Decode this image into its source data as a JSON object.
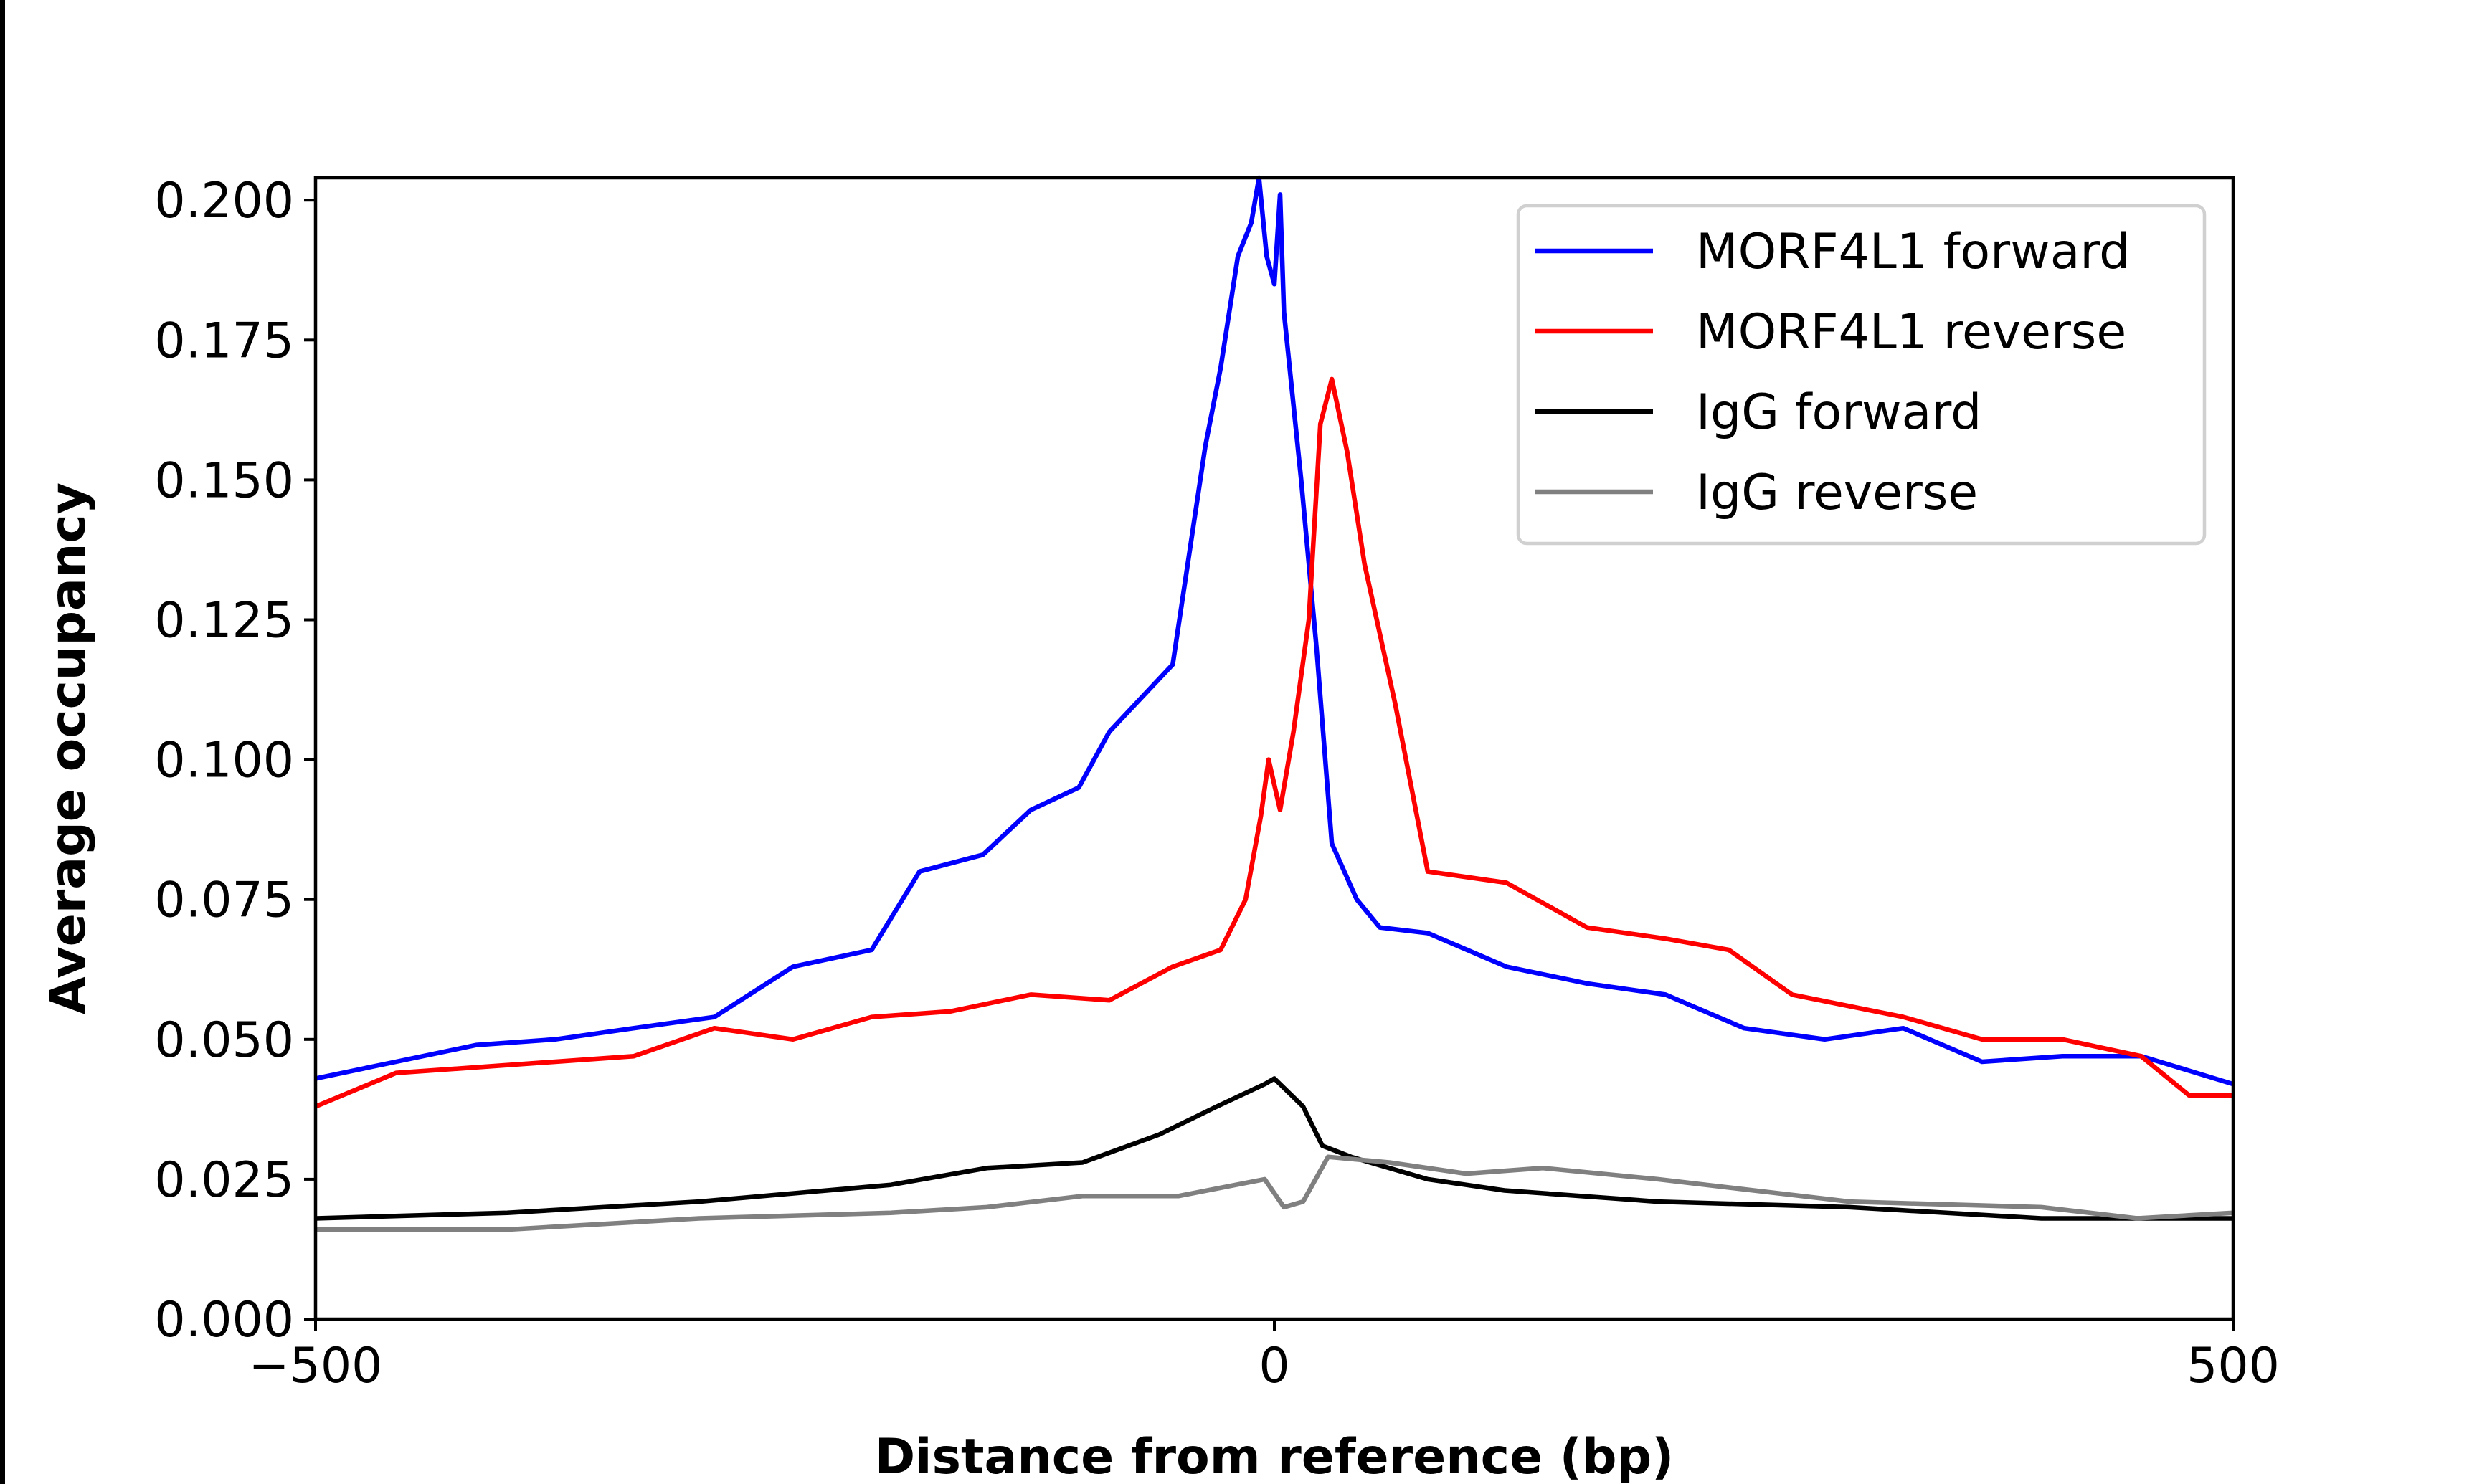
{
  "chart_data": {
    "type": "line",
    "title": "",
    "xlabel": "Distance from reference (bp)",
    "ylabel": "Average occupancy",
    "xlim": [
      -500,
      500
    ],
    "ylim": [
      0,
      0.204
    ],
    "x_ticks": [
      -500,
      0,
      500
    ],
    "x_tick_labels": [
      "−500",
      "0",
      "500"
    ],
    "y_ticks": [
      0,
      0.025,
      0.05,
      0.075,
      0.1,
      0.125,
      0.15,
      0.175,
      0.2
    ],
    "y_tick_labels": [
      "0.000",
      "0.025",
      "0.050",
      "0.075",
      "0.100",
      "0.125",
      "0.150",
      "0.175",
      "0.200"
    ],
    "grid": false,
    "legend_position": "top-right",
    "series": [
      {
        "name": "MORF4L1 forward",
        "color": "#0000ff",
        "x": [
          -500,
          -458,
          -416,
          -375,
          -334,
          -292,
          -251,
          -210,
          -185,
          -152,
          -127,
          -102,
          -86,
          -53,
          -36,
          -28,
          -19,
          -12,
          -8,
          -4,
          0,
          3,
          5,
          14,
          22,
          30,
          43,
          55,
          80,
          121,
          163,
          204,
          245,
          287,
          328,
          369,
          411,
          452,
          500
        ],
        "y": [
          0.043,
          0.046,
          0.049,
          0.05,
          0.052,
          0.054,
          0.063,
          0.066,
          0.08,
          0.083,
          0.091,
          0.095,
          0.105,
          0.117,
          0.156,
          0.17,
          0.19,
          0.196,
          0.204,
          0.19,
          0.185,
          0.201,
          0.18,
          0.15,
          0.12,
          0.085,
          0.075,
          0.07,
          0.069,
          0.063,
          0.06,
          0.058,
          0.052,
          0.05,
          0.052,
          0.046,
          0.047,
          0.047,
          0.042
        ]
      },
      {
        "name": "MORF4L1 reverse",
        "color": "#ff0000",
        "x": [
          -500,
          -458,
          -416,
          -375,
          -334,
          -292,
          -251,
          -210,
          -169,
          -127,
          -86,
          -53,
          -28,
          -15,
          -7,
          -3,
          3,
          10,
          18,
          24,
          30,
          38,
          47,
          63,
          80,
          121,
          163,
          204,
          237,
          270,
          328,
          369,
          411,
          452,
          477,
          500
        ],
        "y": [
          0.038,
          0.044,
          0.045,
          0.046,
          0.047,
          0.052,
          0.05,
          0.054,
          0.055,
          0.058,
          0.057,
          0.063,
          0.066,
          0.075,
          0.09,
          0.1,
          0.091,
          0.105,
          0.125,
          0.16,
          0.168,
          0.155,
          0.135,
          0.11,
          0.08,
          0.078,
          0.07,
          0.068,
          0.066,
          0.058,
          0.054,
          0.05,
          0.05,
          0.047,
          0.04,
          0.04
        ]
      },
      {
        "name": "IgG forward",
        "color": "#000000",
        "x": [
          -500,
          -400,
          -300,
          -200,
          -150,
          -100,
          -60,
          -30,
          -5,
          0,
          15,
          25,
          40,
          80,
          120,
          200,
          300,
          400,
          500
        ],
        "y": [
          0.018,
          0.019,
          0.021,
          0.024,
          0.027,
          0.028,
          0.033,
          0.038,
          0.042,
          0.043,
          0.038,
          0.031,
          0.029,
          0.025,
          0.023,
          0.021,
          0.02,
          0.018,
          0.018
        ]
      },
      {
        "name": "IgG reverse",
        "color": "#808080",
        "x": [
          -500,
          -400,
          -300,
          -200,
          -150,
          -100,
          -50,
          -20,
          -5,
          5,
          15,
          28,
          60,
          100,
          140,
          200,
          250,
          300,
          400,
          450,
          500
        ],
        "y": [
          0.016,
          0.016,
          0.018,
          0.019,
          0.02,
          0.022,
          0.022,
          0.024,
          0.025,
          0.02,
          0.021,
          0.029,
          0.028,
          0.026,
          0.027,
          0.025,
          0.023,
          0.021,
          0.02,
          0.018,
          0.019
        ]
      }
    ]
  }
}
